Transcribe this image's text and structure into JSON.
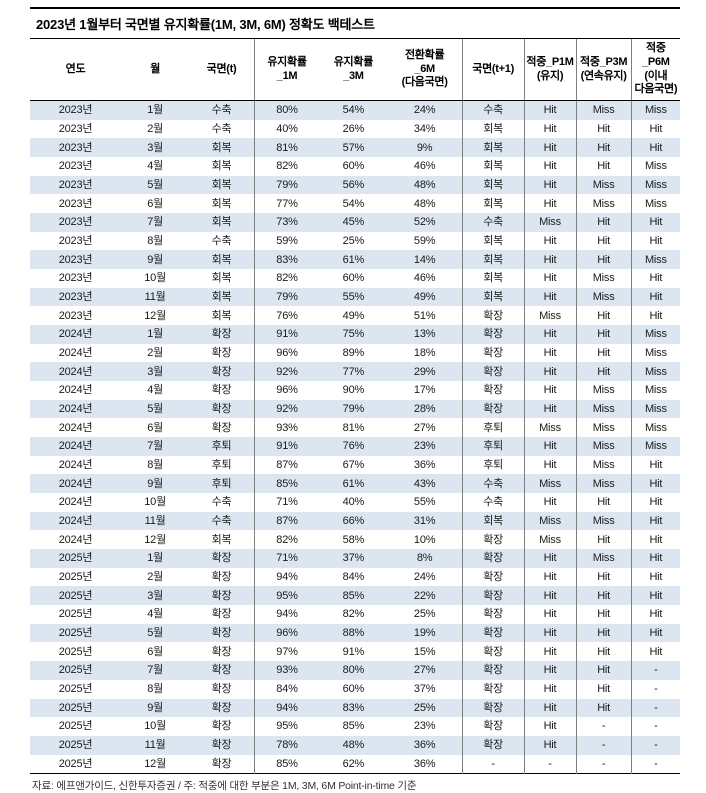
{
  "title": "2023년 1월부터 국면별 유지확률(1M, 3M, 6M) 정확도 백테스트",
  "footer": "자료: 에프앤가이드, 신한투자증권 / 주: 적중에 대한 부분은 1M, 3M, 6M Point-in-time 기준",
  "colors": {
    "row_alt": "#dce6f1",
    "border_dark": "#000000",
    "border_light": "#7f7f7f"
  },
  "table": {
    "column_keys": [
      "year",
      "month",
      "phase-t",
      "prob-1m",
      "prob-3m",
      "prob-6m",
      "phase-t1",
      "hit-p1m",
      "hit-p3m",
      "hit-p6m"
    ],
    "headers": [
      "연도",
      "월",
      "국면(t)",
      "유지확률\n_1M",
      "유지확률\n_3M",
      "전환확률\n_6M\n(다음국면)",
      "국면(t+1)",
      "적중_P1M\n(유지)",
      "적중_P3M\n(연속유지)",
      "적중_P6M\n(이내\n다음국면)"
    ],
    "rows": [
      [
        "2023년",
        "1월",
        "수축",
        "80%",
        "54%",
        "24%",
        "수축",
        "Hit",
        "Miss",
        "Miss"
      ],
      [
        "2023년",
        "2월",
        "수축",
        "40%",
        "26%",
        "34%",
        "회복",
        "Hit",
        "Hit",
        "Hit"
      ],
      [
        "2023년",
        "3월",
        "회복",
        "81%",
        "57%",
        "9%",
        "회복",
        "Hit",
        "Hit",
        "Hit"
      ],
      [
        "2023년",
        "4월",
        "회복",
        "82%",
        "60%",
        "46%",
        "회복",
        "Hit",
        "Hit",
        "Miss"
      ],
      [
        "2023년",
        "5월",
        "회복",
        "79%",
        "56%",
        "48%",
        "회복",
        "Hit",
        "Miss",
        "Miss"
      ],
      [
        "2023년",
        "6월",
        "회복",
        "77%",
        "54%",
        "48%",
        "회복",
        "Hit",
        "Miss",
        "Miss"
      ],
      [
        "2023년",
        "7월",
        "회복",
        "73%",
        "45%",
        "52%",
        "수축",
        "Miss",
        "Hit",
        "Hit"
      ],
      [
        "2023년",
        "8월",
        "수축",
        "59%",
        "25%",
        "59%",
        "회복",
        "Hit",
        "Hit",
        "Hit"
      ],
      [
        "2023년",
        "9월",
        "회복",
        "83%",
        "61%",
        "14%",
        "회복",
        "Hit",
        "Hit",
        "Miss"
      ],
      [
        "2023년",
        "10월",
        "회복",
        "82%",
        "60%",
        "46%",
        "회복",
        "Hit",
        "Miss",
        "Hit"
      ],
      [
        "2023년",
        "11월",
        "회복",
        "79%",
        "55%",
        "49%",
        "회복",
        "Hit",
        "Miss",
        "Hit"
      ],
      [
        "2023년",
        "12월",
        "회복",
        "76%",
        "49%",
        "51%",
        "확장",
        "Miss",
        "Hit",
        "Hit"
      ],
      [
        "2024년",
        "1월",
        "확장",
        "91%",
        "75%",
        "13%",
        "확장",
        "Hit",
        "Hit",
        "Miss"
      ],
      [
        "2024년",
        "2월",
        "확장",
        "96%",
        "89%",
        "18%",
        "확장",
        "Hit",
        "Hit",
        "Miss"
      ],
      [
        "2024년",
        "3월",
        "확장",
        "92%",
        "77%",
        "29%",
        "확장",
        "Hit",
        "Hit",
        "Miss"
      ],
      [
        "2024년",
        "4월",
        "확장",
        "96%",
        "90%",
        "17%",
        "확장",
        "Hit",
        "Miss",
        "Miss"
      ],
      [
        "2024년",
        "5월",
        "확장",
        "92%",
        "79%",
        "28%",
        "확장",
        "Hit",
        "Miss",
        "Miss"
      ],
      [
        "2024년",
        "6월",
        "확장",
        "93%",
        "81%",
        "27%",
        "후퇴",
        "Miss",
        "Miss",
        "Miss"
      ],
      [
        "2024년",
        "7월",
        "후퇴",
        "91%",
        "76%",
        "23%",
        "후퇴",
        "Hit",
        "Miss",
        "Miss"
      ],
      [
        "2024년",
        "8월",
        "후퇴",
        "87%",
        "67%",
        "36%",
        "후퇴",
        "Hit",
        "Miss",
        "Hit"
      ],
      [
        "2024년",
        "9월",
        "후퇴",
        "85%",
        "61%",
        "43%",
        "수축",
        "Miss",
        "Miss",
        "Hit"
      ],
      [
        "2024년",
        "10월",
        "수축",
        "71%",
        "40%",
        "55%",
        "수축",
        "Hit",
        "Hit",
        "Hit"
      ],
      [
        "2024년",
        "11월",
        "수축",
        "87%",
        "66%",
        "31%",
        "회복",
        "Miss",
        "Miss",
        "Hit"
      ],
      [
        "2024년",
        "12월",
        "회복",
        "82%",
        "58%",
        "10%",
        "확장",
        "Miss",
        "Hit",
        "Hit"
      ],
      [
        "2025년",
        "1월",
        "확장",
        "71%",
        "37%",
        "8%",
        "확장",
        "Hit",
        "Miss",
        "Hit"
      ],
      [
        "2025년",
        "2월",
        "확장",
        "94%",
        "84%",
        "24%",
        "확장",
        "Hit",
        "Hit",
        "Hit"
      ],
      [
        "2025년",
        "3월",
        "확장",
        "95%",
        "85%",
        "22%",
        "확장",
        "Hit",
        "Hit",
        "Hit"
      ],
      [
        "2025년",
        "4월",
        "확장",
        "94%",
        "82%",
        "25%",
        "확장",
        "Hit",
        "Hit",
        "Hit"
      ],
      [
        "2025년",
        "5월",
        "확장",
        "96%",
        "88%",
        "19%",
        "확장",
        "Hit",
        "Hit",
        "Hit"
      ],
      [
        "2025년",
        "6월",
        "확장",
        "97%",
        "91%",
        "15%",
        "확장",
        "Hit",
        "Hit",
        "Hit"
      ],
      [
        "2025년",
        "7월",
        "확장",
        "93%",
        "80%",
        "27%",
        "확장",
        "Hit",
        "Hit",
        "-"
      ],
      [
        "2025년",
        "8월",
        "확장",
        "84%",
        "60%",
        "37%",
        "확장",
        "Hit",
        "Hit",
        "-"
      ],
      [
        "2025년",
        "9월",
        "확장",
        "94%",
        "83%",
        "25%",
        "확장",
        "Hit",
        "Hit",
        "-"
      ],
      [
        "2025년",
        "10월",
        "확장",
        "95%",
        "85%",
        "23%",
        "확장",
        "Hit",
        "-",
        "-"
      ],
      [
        "2025년",
        "11월",
        "확장",
        "78%",
        "48%",
        "36%",
        "확장",
        "Hit",
        "-",
        "-"
      ],
      [
        "2025년",
        "12월",
        "확장",
        "85%",
        "62%",
        "36%",
        "-",
        "-",
        "-",
        "-"
      ]
    ]
  }
}
